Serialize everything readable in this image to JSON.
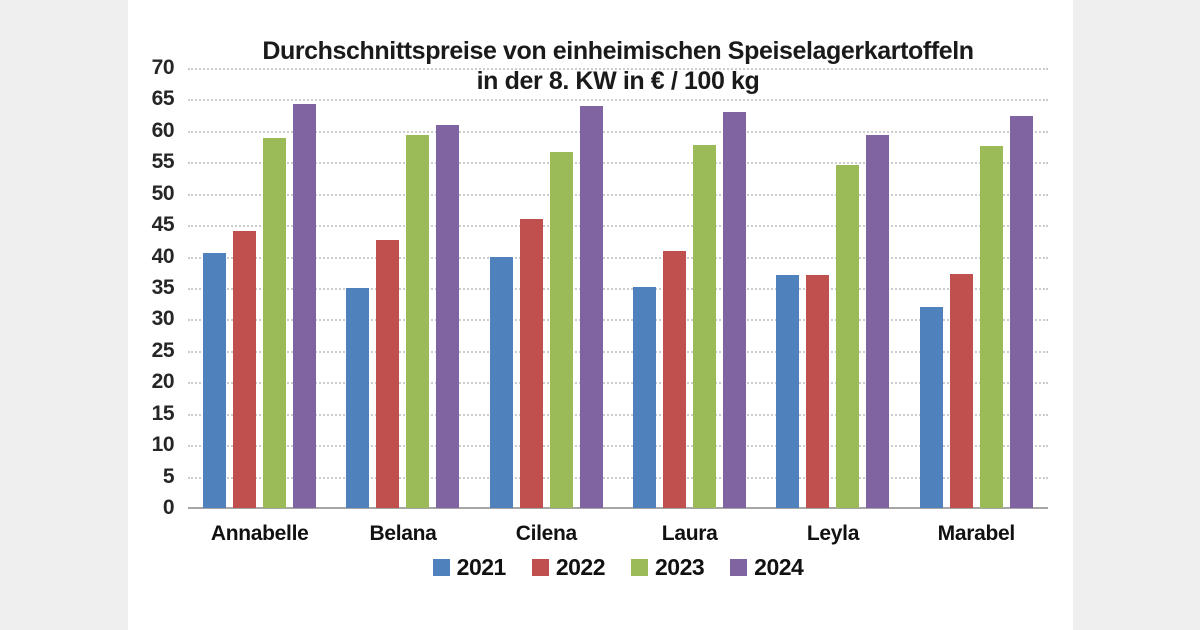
{
  "page": {
    "background_color": "#efefef",
    "card_background_color": "#ffffff"
  },
  "chart_data": {
    "type": "bar",
    "title_line1": "Durchschnittspreise von einheimischen Speiselagerkartoffeln",
    "title_line2": "in der 8. KW in € / 100 kg",
    "title": "Durchschnittspreise von einheimischen Speiselagerkartoffeln in der 8. KW in € / 100 kg",
    "categories": [
      "Annabelle",
      "Belana",
      "Cilena",
      "Laura",
      "Leyla",
      "Marabel"
    ],
    "series": [
      {
        "name": "2021",
        "color": "#4f81bd",
        "values": [
          40.5,
          35.0,
          40.0,
          35.2,
          37.0,
          32.0
        ]
      },
      {
        "name": "2022",
        "color": "#c0504d",
        "values": [
          44.1,
          42.6,
          46.0,
          40.9,
          37.0,
          37.3
        ]
      },
      {
        "name": "2023",
        "color": "#9bbb59",
        "values": [
          58.9,
          59.3,
          56.7,
          57.8,
          54.6,
          57.6
        ]
      },
      {
        "name": "2024",
        "color": "#8064a2",
        "values": [
          64.3,
          61.0,
          64.0,
          63.0,
          59.4,
          62.3
        ]
      }
    ],
    "xlabel": "",
    "ylabel": "",
    "y_axis": {
      "min": 0,
      "max": 70,
      "step": 5,
      "ticks": [
        70,
        65,
        60,
        55,
        50,
        45,
        40,
        35,
        30,
        25,
        20,
        15,
        10,
        5,
        0
      ]
    },
    "grid": "horizontal dotted",
    "gridline_color": "#cccccc",
    "axis_line_color": "#a6a6a6",
    "legend_position": "bottom"
  }
}
